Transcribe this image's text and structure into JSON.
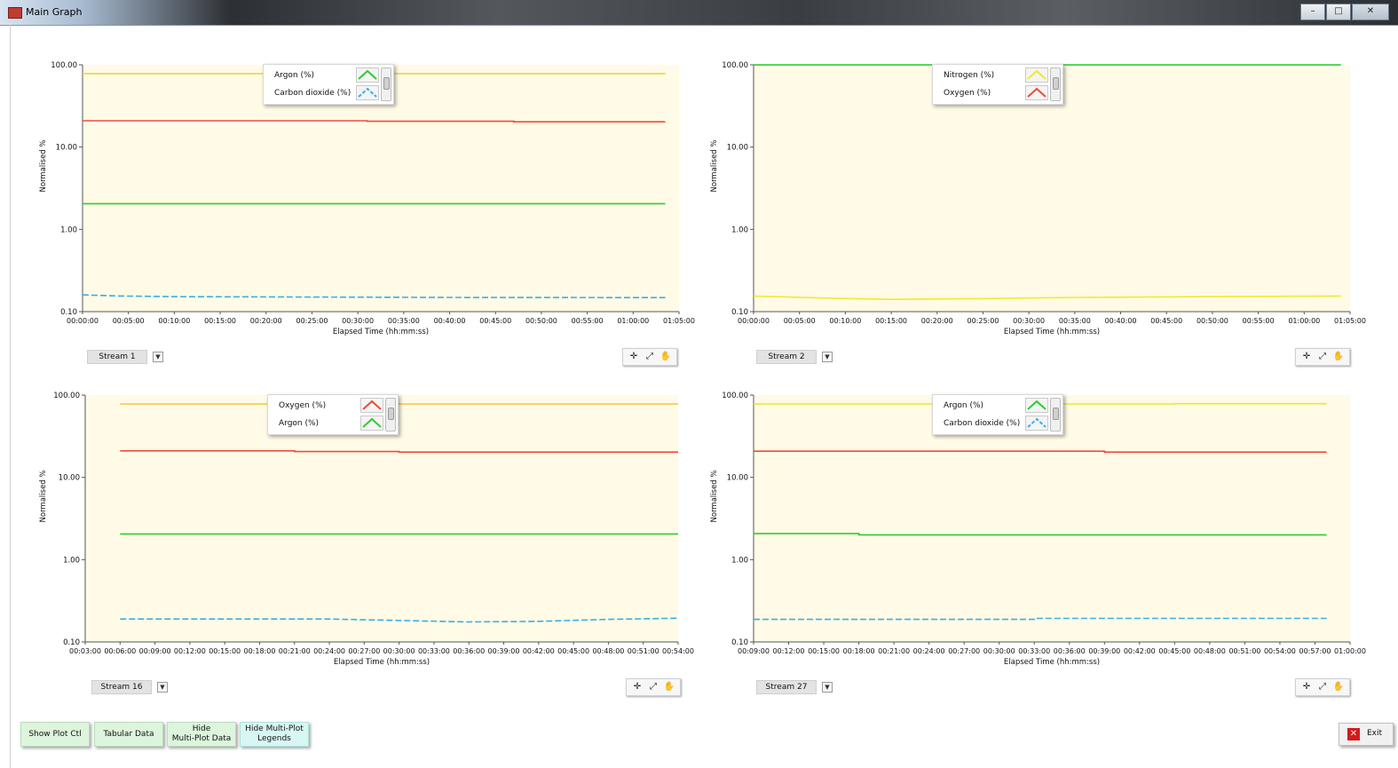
{
  "window": {
    "title": "Main Graph",
    "controls": [
      "–",
      "□",
      "✕"
    ]
  },
  "charts": [
    {
      "stream": "Stream 1",
      "legend": [
        {
          "label": "Argon (%)",
          "color": "#2ecc2e"
        },
        {
          "label": "Carbon dioxide (%)",
          "color": "#3aaee8",
          "dashed": true
        }
      ],
      "chart_data": {
        "type": "line",
        "xlabel": "Elapsed Time (hh:mm:ss)",
        "ylabel": "Normalised %",
        "yscale": "log",
        "ylim": [
          0.1,
          100
        ],
        "yticks": [
          "0.10",
          "1.00",
          "10.00",
          "100.00"
        ],
        "xlim": [
          "00:00:00",
          "01:05:00"
        ],
        "xticks": [
          "00:00:00",
          "00:05:00",
          "00:10:00",
          "00:15:00",
          "00:20:00",
          "00:25:00",
          "00:30:00",
          "00:35:00",
          "00:40:00",
          "00:45:00",
          "00:50:00",
          "00:55:00",
          "01:00:00",
          "01:05:00"
        ],
        "series": [
          {
            "color": "#f0d43a",
            "x": [
              "00:00:00",
              "01:03:30"
            ],
            "values": [
              78.1,
              78.1
            ]
          },
          {
            "color": "#f04a3a",
            "x": [
              "00:00:00",
              "00:31:00",
              "00:31:00",
              "00:47:00",
              "00:47:00",
              "01:03:30"
            ],
            "values": [
              20.9,
              20.9,
              20.6,
              20.6,
              20.3,
              20.3
            ]
          },
          {
            "color": "#2ecc2e",
            "x": [
              "00:00:00",
              "01:03:30"
            ],
            "values": [
              2.05,
              2.05
            ]
          },
          {
            "color": "#3aaee8",
            "dashed": true,
            "x": [
              "00:00:00",
              "00:04:00",
              "00:10:00",
              "00:40:00",
              "01:03:30"
            ],
            "values": [
              0.16,
              0.155,
              0.152,
              0.149,
              0.148
            ]
          }
        ]
      }
    },
    {
      "stream": "Stream 2",
      "legend": [
        {
          "label": "Nitrogen (%)",
          "color": "#f3e832"
        },
        {
          "label": "Oxygen (%)",
          "color": "#f04a3a"
        }
      ],
      "chart_data": {
        "type": "line",
        "xlabel": "Elapsed Time (hh:mm:ss)",
        "ylabel": "Normalised %",
        "yscale": "log",
        "ylim": [
          0.1,
          100
        ],
        "yticks": [
          "0.10",
          "1.00",
          "10.00",
          "100.00"
        ],
        "xlim": [
          "00:00:00",
          "01:05:00"
        ],
        "xticks": [
          "00:00:00",
          "00:05:00",
          "00:10:00",
          "00:15:00",
          "00:20:00",
          "00:25:00",
          "00:30:00",
          "00:35:00",
          "00:40:00",
          "00:45:00",
          "00:50:00",
          "00:55:00",
          "01:00:00",
          "01:05:00"
        ],
        "series": [
          {
            "color": "#2ecc2e",
            "x": [
              "00:00:00",
              "01:04:00"
            ],
            "values": [
              99.8,
              99.8
            ]
          },
          {
            "color": "#f3e832",
            "x": [
              "00:00:00",
              "00:08:00",
              "00:15:00",
              "00:25:00",
              "00:35:00",
              "00:50:00",
              "01:04:00"
            ],
            "values": [
              0.155,
              0.146,
              0.141,
              0.144,
              0.149,
              0.152,
              0.155
            ]
          }
        ]
      }
    },
    {
      "stream": "Stream 16",
      "legend": [
        {
          "label": "Oxygen (%)",
          "color": "#f04a3a"
        },
        {
          "label": "Argon (%)",
          "color": "#2ecc2e"
        }
      ],
      "chart_data": {
        "type": "line",
        "xlabel": "Elapsed Time (hh:mm:ss)",
        "ylabel": "Normalised %",
        "yscale": "log",
        "ylim": [
          0.1,
          100
        ],
        "yticks": [
          "0.10",
          "1.00",
          "10.00",
          "100.00"
        ],
        "xlim": [
          "00:03:00",
          "00:54:00"
        ],
        "xticks": [
          "00:03:00",
          "00:06:00",
          "00:09:00",
          "00:12:00",
          "00:15:00",
          "00:18:00",
          "00:21:00",
          "00:24:00",
          "00:27:00",
          "00:30:00",
          "00:33:00",
          "00:36:00",
          "00:39:00",
          "00:42:00",
          "00:45:00",
          "00:48:00",
          "00:51:00",
          "00:54:00"
        ],
        "series": [
          {
            "color": "#f5c542",
            "x": [
              "00:06:00",
              "00:54:00"
            ],
            "values": [
              78.0,
              78.0
            ]
          },
          {
            "color": "#f04a3a",
            "x": [
              "00:06:00",
              "00:21:00",
              "00:21:00",
              "00:30:00",
              "00:30:00",
              "00:54:00"
            ],
            "values": [
              21.0,
              21.0,
              20.6,
              20.6,
              20.3,
              20.3
            ]
          },
          {
            "color": "#2ecc2e",
            "x": [
              "00:06:00",
              "00:54:00"
            ],
            "values": [
              2.05,
              2.05
            ]
          },
          {
            "color": "#3aaee8",
            "dashed": true,
            "x": [
              "00:06:00",
              "00:24:00",
              "00:36:00",
              "00:42:00",
              "00:48:00",
              "00:54:00"
            ],
            "values": [
              0.19,
              0.19,
              0.175,
              0.178,
              0.188,
              0.194
            ]
          }
        ]
      }
    },
    {
      "stream": "Stream 27",
      "legend": [
        {
          "label": "Argon (%)",
          "color": "#2ecc2e"
        },
        {
          "label": "Carbon dioxide (%)",
          "color": "#3aaee8",
          "dashed": true
        }
      ],
      "chart_data": {
        "type": "line",
        "xlabel": "Elapsed Time (hh:mm:ss)",
        "ylabel": "Normalised %",
        "yscale": "log",
        "ylim": [
          0.1,
          100
        ],
        "yticks": [
          "0.10",
          "1.00",
          "10.00",
          "100.00"
        ],
        "xlim": [
          "00:09:00",
          "01:00:00"
        ],
        "xticks": [
          "00:09:00",
          "00:12:00",
          "00:15:00",
          "00:18:00",
          "00:21:00",
          "00:24:00",
          "00:27:00",
          "00:30:00",
          "00:33:00",
          "00:36:00",
          "00:39:00",
          "00:42:00",
          "00:45:00",
          "00:48:00",
          "00:51:00",
          "00:54:00",
          "00:57:00",
          "01:00:00"
        ],
        "series": [
          {
            "color": "#e8e832",
            "x": [
              "00:09:00",
              "00:45:00",
              "00:45:00",
              "00:58:00"
            ],
            "values": [
              78.0,
              78.0,
              78.6,
              78.6
            ]
          },
          {
            "color": "#f04a3a",
            "x": [
              "00:09:00",
              "00:39:00",
              "00:39:00",
              "00:58:00"
            ],
            "values": [
              20.8,
              20.8,
              20.3,
              20.3
            ]
          },
          {
            "color": "#2ecc2e",
            "x": [
              "00:09:00",
              "00:18:00",
              "00:18:00",
              "00:58:00"
            ],
            "values": [
              2.08,
              2.08,
              2.0,
              2.0
            ]
          },
          {
            "color": "#3aaee8",
            "dashed": true,
            "x": [
              "00:09:00",
              "00:33:00",
              "00:33:00",
              "00:58:00"
            ],
            "values": [
              0.188,
              0.188,
              0.193,
              0.193
            ]
          }
        ]
      }
    }
  ],
  "buttons": {
    "show_plot_ctl": "Show  Plot Ctl",
    "tabular_data": "Tabular Data",
    "hide_multi_plot_data_1": "Hide",
    "hide_multi_plot_data_2": "Multi-Plot Data",
    "hide_multi_plot_legends_1": "Hide Multi-Plot",
    "hide_multi_plot_legends_2": "Legends",
    "exit": "Exit"
  },
  "icons": {
    "crosshair": "crosshair-icon",
    "zoom": "zoom-icon",
    "pan": "pan-hand-icon",
    "exit": "exit-icon"
  }
}
